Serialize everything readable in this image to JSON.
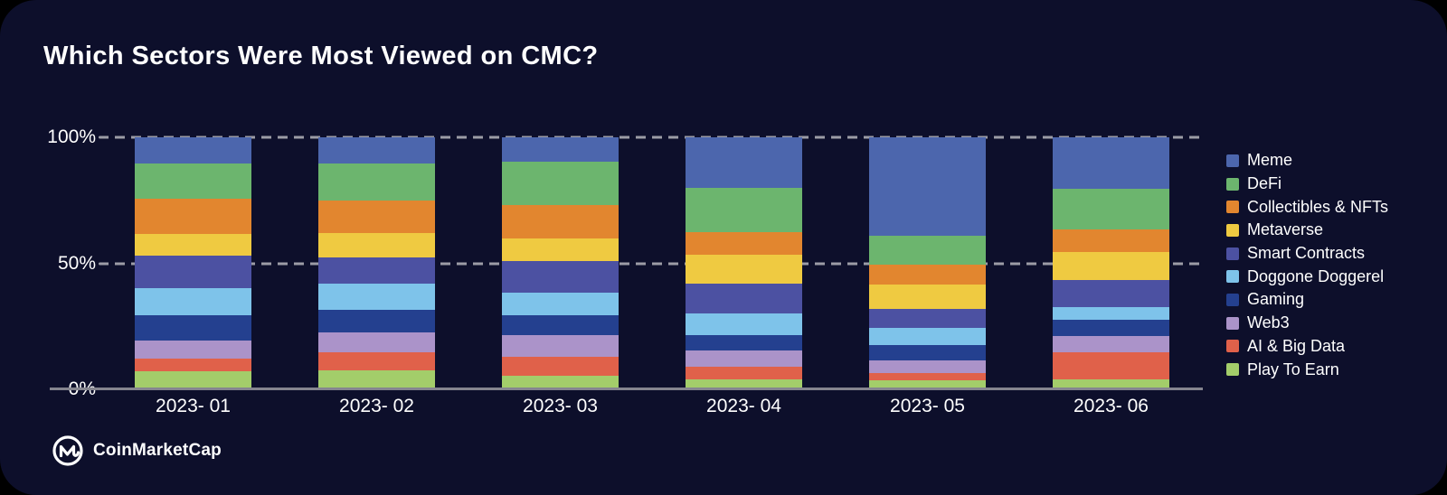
{
  "title": "Which Sectors Were Most Viewed on CMC?",
  "footer": {
    "brand": "CoinMarketCap",
    "logo_icon": "coinmarketcap-circle-m"
  },
  "colors": {
    "outer_background": "#000000",
    "card_background": "#0d0f2b",
    "text": "#ffffff",
    "gridline": "#9c9ca6",
    "axis_line": "#85858f"
  },
  "chart_data": {
    "type": "bar",
    "subtype": "stacked-100-percent",
    "title": "Which Sectors Were Most Viewed on CMC?",
    "xlabel": "",
    "ylabel": "",
    "ylim": [
      0,
      100
    ],
    "grid": "horizontal dashed at 50% and 100%, solid axis at 0%",
    "legend_position": "right",
    "y_ticks": [
      {
        "label": "100%",
        "value": 100
      },
      {
        "label": "50%",
        "value": 50
      },
      {
        "label": "0%",
        "value": 0
      }
    ],
    "categories": [
      "2023- 01",
      "2023- 02",
      "2023- 03",
      "2023- 04",
      "2023- 05",
      "2023- 06"
    ],
    "stack_order_note": "series listed top-of-bar first; values are percent of total views",
    "series": [
      {
        "name": "Meme",
        "color": "#4c66ad",
        "values": [
          10.5,
          10.5,
          9.5,
          20.0,
          39.0,
          20.5
        ]
      },
      {
        "name": "DeFi",
        "color": "#6cb56e",
        "values": [
          14.0,
          14.5,
          17.5,
          17.5,
          11.5,
          16.0
        ]
      },
      {
        "name": "Collectibles & NFTs",
        "color": "#e2862f",
        "values": [
          14.0,
          13.0,
          13.0,
          9.0,
          8.0,
          9.0
        ]
      },
      {
        "name": "Metaverse",
        "color": "#efca41",
        "values": [
          8.5,
          9.5,
          9.0,
          11.5,
          9.5,
          11.0
        ]
      },
      {
        "name": "Smart Contracts",
        "color": "#4c51a2",
        "values": [
          13.0,
          10.5,
          12.5,
          12.0,
          7.5,
          11.0
        ]
      },
      {
        "name": "Doggone Doggerel",
        "color": "#7ec3ea",
        "values": [
          10.5,
          10.5,
          9.0,
          8.5,
          7.0,
          5.0
        ]
      },
      {
        "name": "Gaming",
        "color": "#24408f",
        "values": [
          10.0,
          9.0,
          8.0,
          6.0,
          6.0,
          6.5
        ]
      },
      {
        "name": "Web3",
        "color": "#ab93c9",
        "values": [
          7.5,
          8.0,
          8.5,
          6.5,
          5.0,
          6.5
        ]
      },
      {
        "name": "AI & Big Data",
        "color": "#e0614a",
        "values": [
          5.0,
          7.0,
          7.5,
          5.0,
          3.0,
          10.5
        ]
      },
      {
        "name": "Play To Earn",
        "color": "#a3cd6a",
        "values": [
          7.0,
          7.5,
          5.5,
          4.0,
          3.5,
          4.0
        ]
      }
    ]
  }
}
